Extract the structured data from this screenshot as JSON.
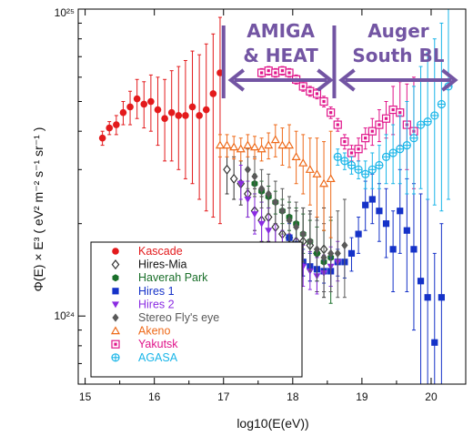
{
  "chart_data": {
    "type": "scatter",
    "title": "",
    "xlabel": "log10(E(eV))",
    "ylabel": "Φ(E) × E³ ( eV² m⁻² s⁻¹ sr⁻¹ )",
    "xlim": [
      14.9,
      20.5
    ],
    "ylim": [
      6e+23,
      1e+25
    ],
    "y_scale": "log",
    "grid": false,
    "legend_position": "bottom-left",
    "x_ticks": [
      "15",
      "16",
      "17",
      "18",
      "19",
      "20"
    ],
    "y_ticks": [
      "10²⁴",
      "10²⁵"
    ],
    "annotations": [
      {
        "line1": "AMIGA",
        "line2": "& HEAT",
        "x_from": 17.0,
        "x_to": 18.6,
        "color": "#7355a3"
      },
      {
        "line1": "Auger",
        "line2": "South BL",
        "x_from": 18.6,
        "x_to": 20.4,
        "color": "#7355a3"
      }
    ],
    "series": [
      {
        "name": "Kascade",
        "marker": "circle",
        "color": "#e31a1c",
        "x": [
          15.25,
          15.35,
          15.45,
          15.55,
          15.65,
          15.75,
          15.85,
          15.95,
          16.05,
          16.15,
          16.25,
          16.35,
          16.45,
          16.55,
          16.65,
          16.75,
          16.85,
          16.95
        ],
        "y": [
          3.8e+24,
          4.1e+24,
          4.2e+24,
          4.6e+24,
          4.8e+24,
          5.1e+24,
          4.9e+24,
          5e+24,
          4.7e+24,
          4.4e+24,
          4.6e+24,
          4.5e+24,
          4.5e+24,
          4.8e+24,
          4.5e+24,
          4.7e+24,
          5.3e+24,
          6.2e+24
        ],
        "err_lo": [
          3.6e+24,
          3.9e+24,
          3.9e+24,
          4.2e+24,
          4.2e+24,
          4.4e+24,
          4.1e+24,
          4e+24,
          3.6e+24,
          3.2e+24,
          3.2e+24,
          3e+24,
          2.8e+24,
          2.7e+24,
          2.4e+24,
          2.2e+24,
          2.1e+24,
          2e+24
        ],
        "err_hi": [
          4e+24,
          4.3e+24,
          4.5e+24,
          5e+24,
          5.4e+24,
          5.9e+24,
          5.8e+24,
          6.1e+24,
          6e+24,
          5.9e+24,
          6.3e+24,
          6.5e+24,
          6.8e+24,
          7.3e+24,
          7.1e+24,
          7.7e+24,
          8.3e+24,
          9.4e+24
        ]
      },
      {
        "name": "Hires-Mia",
        "marker": "diamond-open",
        "color": "#333333",
        "x": [
          17.05,
          17.15,
          17.25,
          17.35,
          17.45,
          17.55,
          17.65,
          17.75,
          17.85,
          17.95,
          18.05,
          18.15,
          18.25,
          18.35,
          18.45
        ],
        "y": [
          3e+24,
          2.8e+24,
          2.7e+24,
          2.5e+24,
          2.2e+24,
          2.05e+24,
          2.1e+24,
          1.95e+24,
          1.85e+24,
          1.8e+24,
          1.75e+24,
          1.75e+24,
          1.7e+24,
          1.6e+24,
          1.65e+24
        ],
        "err_lo": [
          2.5e+24,
          2.4e+24,
          2.3e+24,
          2.1e+24,
          1.9e+24,
          1.75e+24,
          1.75e+24,
          1.6e+24,
          1.5e+24,
          1.45e+24,
          1.4e+24,
          1.35e+24,
          1.3e+24,
          1.2e+24,
          1.15e+24
        ],
        "err_hi": [
          3.6e+24,
          3.3e+24,
          3.2e+24,
          3e+24,
          2.6e+24,
          2.45e+24,
          2.5e+24,
          2.35e+24,
          2.3e+24,
          2.25e+24,
          2.2e+24,
          2.25e+24,
          2.2e+24,
          2.1e+24,
          2.25e+24
        ]
      },
      {
        "name": "Haverah Park",
        "marker": "hexagon",
        "color": "#1a6f2a",
        "x": [
          17.45,
          17.55,
          17.65,
          17.75,
          17.85,
          17.95,
          18.05,
          18.15,
          18.25,
          18.35,
          18.45,
          18.55
        ],
        "y": [
          2.7e+24,
          2.55e+24,
          2.45e+24,
          2.35e+24,
          2.2e+24,
          2.1e+24,
          2e+24,
          1.85e+24,
          1.75e+24,
          1.6e+24,
          1.5e+24,
          1.55e+24
        ],
        "err_lo": [
          2.5e+24,
          2.35e+24,
          2.25e+24,
          2.15e+24,
          2e+24,
          1.9e+24,
          1.75e+24,
          1.6e+24,
          1.45e+24,
          1.3e+24,
          1.2e+24,
          1.1e+24
        ],
        "err_hi": [
          2.9e+24,
          2.75e+24,
          2.65e+24,
          2.55e+24,
          2.4e+24,
          2.35e+24,
          2.25e+24,
          2.15e+24,
          2.05e+24,
          1.95e+24,
          1.9e+24,
          2.05e+24
        ]
      },
      {
        "name": "Hires 1",
        "marker": "square",
        "color": "#1532c8",
        "x": [
          17.95,
          18.05,
          18.15,
          18.25,
          18.35,
          18.45,
          18.55,
          18.65,
          18.75,
          18.85,
          18.95,
          19.05,
          19.15,
          19.25,
          19.35,
          19.45,
          19.55,
          19.65,
          19.75,
          19.85,
          19.95,
          20.05,
          20.15
        ],
        "y": [
          1.8e+24,
          1.6e+24,
          1.5e+24,
          1.45e+24,
          1.42e+24,
          1.4e+24,
          1.4e+24,
          1.5e+24,
          1.5e+24,
          1.6e+24,
          1.85e+24,
          2.3e+24,
          2.4e+24,
          2.2e+24,
          2e+24,
          1.65e+24,
          2.2e+24,
          1.9e+24,
          1.65e+24,
          1.3e+24,
          1.15e+24,
          8.2e+23,
          1.15e+24
        ],
        "err_lo": [
          1.6e+24,
          1.45e+24,
          1.35e+24,
          1.3e+24,
          1.3e+24,
          1.28e+24,
          1.25e+24,
          1.35e+24,
          1.33e+24,
          1.4e+24,
          1.6e+24,
          1.9e+24,
          2e+24,
          1.75e+24,
          1.55e+24,
          1.2e+24,
          1.6e+24,
          1.2e+24,
          9e+23,
          6e+23,
          6e+23,
          6e+23,
          6e+23
        ],
        "err_hi": [
          2e+24,
          1.75e+24,
          1.65e+24,
          1.6e+24,
          1.55e+24,
          1.52e+24,
          1.55e+24,
          1.65e+24,
          1.7e+24,
          1.8e+24,
          2.1e+24,
          2.75e+24,
          2.9e+24,
          2.7e+24,
          2.6e+24,
          2.2e+24,
          3e+24,
          2.8e+24,
          2.7e+24,
          2.5e+24,
          2.4e+24,
          1.6e+24,
          2e+24
        ]
      },
      {
        "name": "Hires 2",
        "marker": "triangle-down",
        "color": "#8a2be2",
        "x": [
          17.25,
          17.35,
          17.45,
          17.55,
          17.65,
          17.75,
          17.85,
          17.95,
          18.05,
          18.15,
          18.25,
          18.35,
          18.45,
          18.55,
          18.65
        ],
        "y": [
          2.7e+24,
          2.4e+24,
          2.15e+24,
          2e+24,
          1.9e+24,
          1.7e+24,
          1.6e+24,
          1.55e+24,
          1.5e+24,
          1.45e+24,
          1.4e+24,
          1.35e+24,
          1.38e+24,
          1.45e+24,
          1.5e+24
        ],
        "err_lo": [
          2.4e+24,
          2.1e+24,
          1.85e+24,
          1.7e+24,
          1.6e+24,
          1.45e+24,
          1.35e+24,
          1.3e+24,
          1.28e+24,
          1.25e+24,
          1.22e+24,
          1.18e+24,
          1.2e+24,
          1.25e+24,
          1.3e+24
        ],
        "err_hi": [
          3.1e+24,
          2.75e+24,
          2.5e+24,
          2.35e+24,
          2.25e+24,
          2e+24,
          1.9e+24,
          1.85e+24,
          1.78e+24,
          1.7e+24,
          1.62e+24,
          1.55e+24,
          1.58e+24,
          1.68e+24,
          1.75e+24
        ]
      },
      {
        "name": "Stereo Fly's eye",
        "marker": "diamond",
        "color": "#595959",
        "x": [
          17.35,
          17.45,
          17.55,
          17.65,
          17.75,
          17.85,
          17.95,
          18.05,
          18.15,
          18.25,
          18.35,
          18.45,
          18.55,
          18.65,
          18.75
        ],
        "y": [
          3e+24,
          2.85e+24,
          2.6e+24,
          2.5e+24,
          2.35e+24,
          2.2e+24,
          2.05e+24,
          1.95e+24,
          1.85e+24,
          1.75e+24,
          1.65e+24,
          1.55e+24,
          1.6e+24,
          1.6e+24,
          1.7e+24
        ],
        "err_lo": [
          2.6e+24,
          2.45e+24,
          2.25e+24,
          2.15e+24,
          2e+24,
          1.85e+24,
          1.7e+24,
          1.6e+24,
          1.5e+24,
          1.4e+24,
          1.3e+24,
          1.2e+24,
          1.2e+24,
          1.15e+24,
          1.15e+24
        ],
        "err_hi": [
          3.5e+24,
          3.3e+24,
          3e+24,
          2.9e+24,
          2.75e+24,
          2.6e+24,
          2.45e+24,
          2.35e+24,
          2.25e+24,
          2.15e+24,
          2.05e+24,
          2e+24,
          2.1e+24,
          2.2e+24,
          2.4e+24
        ]
      },
      {
        "name": "Akeno",
        "marker": "triangle-open",
        "color": "#ee6a1a",
        "x": [
          16.95,
          17.05,
          17.15,
          17.25,
          17.35,
          17.45,
          17.55,
          17.65,
          17.75,
          17.85,
          17.95,
          18.05,
          18.15,
          18.25,
          18.35,
          18.45,
          18.55
        ],
        "y": [
          3.6e+24,
          3.6e+24,
          3.55e+24,
          3.5e+24,
          3.6e+24,
          3.55e+24,
          3.5e+24,
          3.6e+24,
          3.75e+24,
          3.6e+24,
          3.6e+24,
          3.3e+24,
          3.15e+24,
          3e+24,
          2.9e+24,
          2.7e+24,
          2.8e+24
        ],
        "err_lo": [
          3.3e+24,
          3.3e+24,
          3.25e+24,
          3.2e+24,
          3.3e+24,
          3.25e+24,
          3.2e+24,
          3.25e+24,
          3.3e+24,
          3.1e+24,
          3.05e+24,
          2.7e+24,
          2.5e+24,
          2.3e+24,
          2.1e+24,
          1.9e+24,
          1.8e+24
        ],
        "err_hi": [
          3.9e+24,
          3.9e+24,
          3.85e+24,
          3.8e+24,
          3.9e+24,
          3.85e+24,
          3.8e+24,
          3.95e+24,
          4.2e+24,
          4.1e+24,
          4.2e+24,
          4e+24,
          3.9e+24,
          3.8e+24,
          3.8e+24,
          3.7e+24,
          4e+24
        ]
      },
      {
        "name": "Yakutsk",
        "marker": "square-boxed",
        "color": "#e0148a",
        "x": [
          17.55,
          17.65,
          17.75,
          17.85,
          17.95,
          18.05,
          18.15,
          18.25,
          18.35,
          18.45,
          18.55,
          18.65,
          18.75,
          18.85,
          18.95,
          19.05,
          19.15,
          19.25,
          19.35,
          19.45,
          19.55,
          19.65,
          19.75
        ],
        "y": [
          6.2e+24,
          6.3e+24,
          6.2e+24,
          6.3e+24,
          6.2e+24,
          5.9e+24,
          5.6e+24,
          5.4e+24,
          5.3e+24,
          5e+24,
          4.6e+24,
          4.2e+24,
          3.7e+24,
          3.4e+24,
          3.5e+24,
          3.8e+24,
          4e+24,
          4.2e+24,
          4.4e+24,
          4.7e+24,
          4.6e+24,
          4.2e+24,
          4e+24
        ],
        "err_lo": [
          6e+24,
          6.1e+24,
          6e+24,
          6.1e+24,
          6e+24,
          5.7e+24,
          5.4e+24,
          5.2e+24,
          5.1e+24,
          4.8e+24,
          4.4e+24,
          4e+24,
          3.5e+24,
          3.2e+24,
          3.2e+24,
          3.5e+24,
          3.6e+24,
          3.7e+24,
          3.8e+24,
          3.9e+24,
          3.6e+24,
          3e+24,
          2.6e+24
        ],
        "err_hi": [
          6.4e+24,
          6.5e+24,
          6.4e+24,
          6.5e+24,
          6.4e+24,
          6.1e+24,
          5.8e+24,
          5.6e+24,
          5.5e+24,
          5.2e+24,
          4.8e+24,
          4.4e+24,
          3.9e+24,
          3.6e+24,
          3.8e+24,
          4.1e+24,
          4.4e+24,
          4.7e+24,
          5e+24,
          5.6e+24,
          5.8e+24,
          5.7e+24,
          6e+24
        ]
      },
      {
        "name": "AGASA",
        "marker": "circle-cross",
        "color": "#19b5e8",
        "x": [
          18.65,
          18.75,
          18.85,
          18.95,
          19.05,
          19.15,
          19.25,
          19.35,
          19.45,
          19.55,
          19.65,
          19.75,
          19.85,
          19.95,
          20.05,
          20.15,
          20.25
        ],
        "y": [
          3.3e+24,
          3.2e+24,
          3.1e+24,
          3e+24,
          2.9e+24,
          3e+24,
          3.1e+24,
          3.3e+24,
          3.4e+24,
          3.5e+24,
          3.6e+24,
          3.8e+24,
          4.2e+24,
          4.3e+24,
          4.5e+24,
          4.9e+24,
          5.6e+24
        ],
        "err_lo": [
          3.1e+24,
          3e+24,
          2.9e+24,
          2.8e+24,
          2.6e+24,
          2.6e+24,
          2.6e+24,
          2.7e+24,
          2.7e+24,
          2.7e+24,
          2.5e+24,
          2.5e+24,
          2.6e+24,
          2.4e+24,
          2.3e+24,
          2.2e+24,
          2.4e+24
        ],
        "err_hi": [
          3.5e+24,
          3.4e+24,
          3.3e+24,
          3.2e+24,
          3.2e+24,
          3.4e+24,
          3.6e+24,
          3.9e+24,
          4.2e+24,
          4.5e+24,
          5e+24,
          5.6e+24,
          6.5e+24,
          7.2e+24,
          8e+24,
          9e+24,
          1e+25
        ]
      }
    ]
  }
}
